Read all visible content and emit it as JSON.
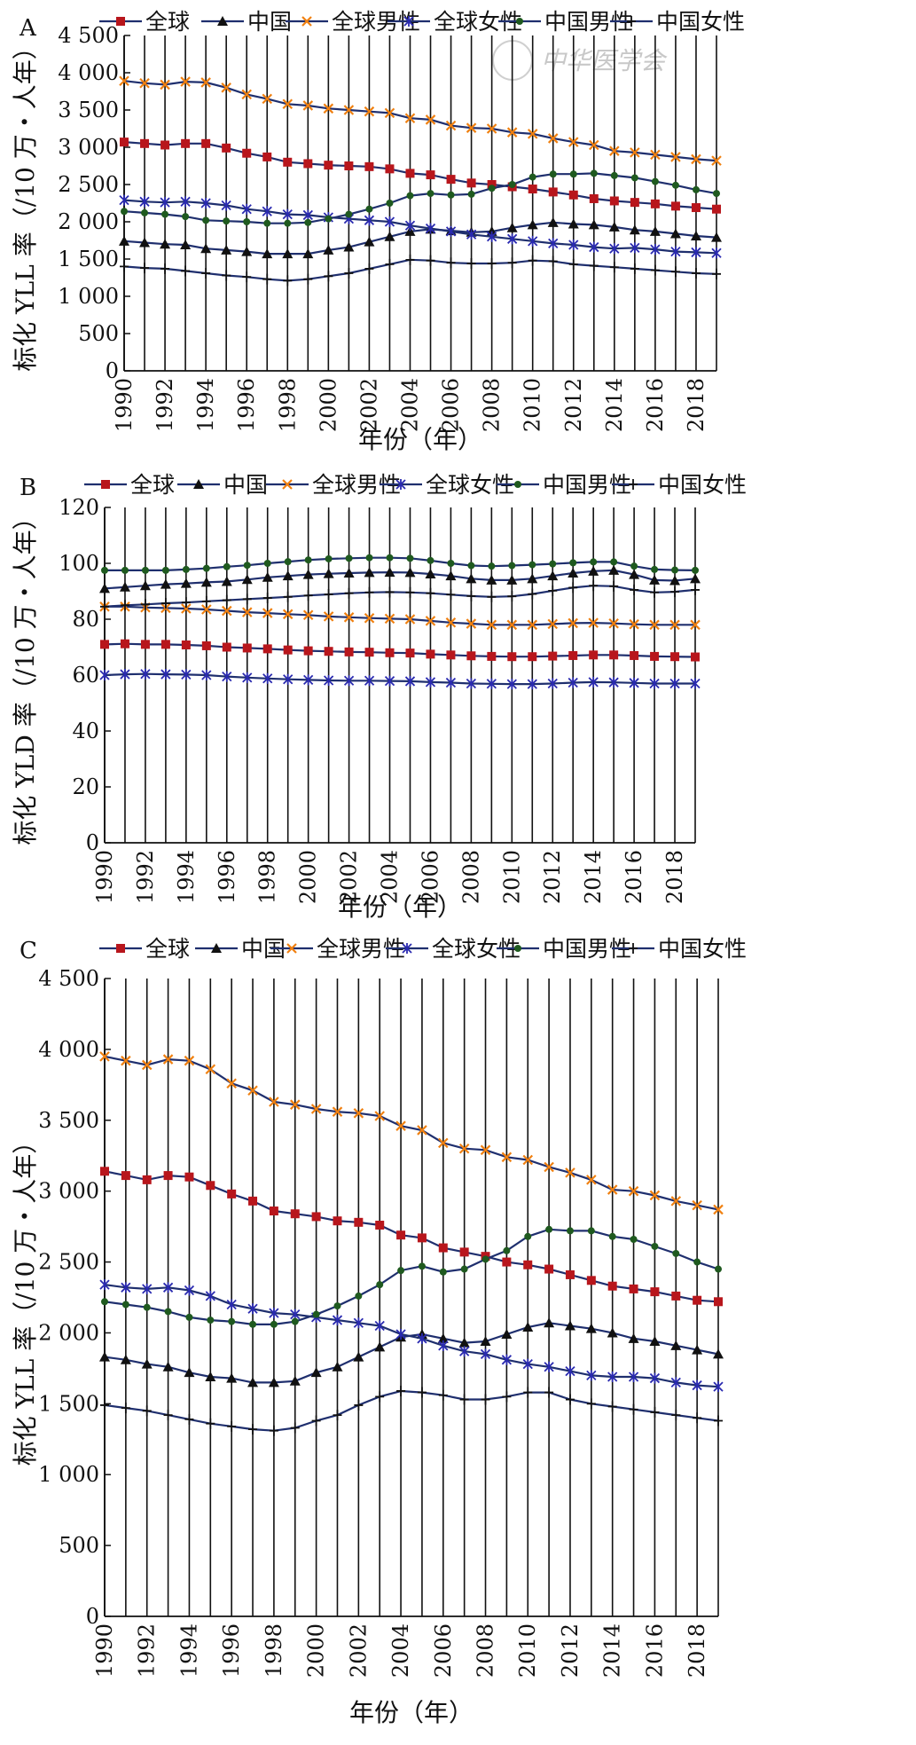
{
  "watermark": "中华医学会",
  "series_styles": [
    {
      "name": "全球",
      "color": "#1f2f6e",
      "marker_color": "#b8161c",
      "marker": "square"
    },
    {
      "name": "中国",
      "color": "#1f2f6e",
      "marker_color": "#111111",
      "marker": "triangle"
    },
    {
      "name": "全球男性",
      "color": "#1f2f6e",
      "marker_color": "#f08010",
      "marker": "x"
    },
    {
      "name": "全球女性",
      "color": "#1f2f6e",
      "marker_color": "#2a2ab0",
      "marker": "star"
    },
    {
      "name": "中国男性",
      "color": "#1f2f6e",
      "marker_color": "#1f5a1f",
      "marker": "circle"
    },
    {
      "name": "中国女性",
      "color": "#1f2f6e",
      "marker_color": "#111111",
      "marker": "plus"
    }
  ],
  "chart_data": [
    {
      "panel": "A",
      "type": "line",
      "ylabel": "标化 YLL 率（/10 万・人年）",
      "xlabel": "年份（年）",
      "ylim": [
        0,
        4500
      ],
      "yticks": [
        "0",
        "500",
        "1 000",
        "1 500",
        "2 000",
        "2 500",
        "3 000",
        "3 500",
        "4 000",
        "4 500"
      ],
      "x": [
        1990,
        1991,
        1992,
        1993,
        1994,
        1995,
        1996,
        1997,
        1998,
        1999,
        2000,
        2001,
        2002,
        2003,
        2004,
        2005,
        2006,
        2007,
        2008,
        2009,
        2010,
        2011,
        2012,
        2013,
        2014,
        2015,
        2016,
        2017,
        2018,
        2019
      ],
      "xticks": [
        "1990",
        "1992",
        "1994",
        "1996",
        "1998",
        "2000",
        "2002",
        "2004",
        "2006",
        "2008",
        "2010",
        "2012",
        "2014",
        "2016",
        "2018"
      ],
      "grid": "vertical",
      "legend": "top",
      "series": [
        {
          "name": "全球",
          "values": [
            3070,
            3050,
            3030,
            3050,
            3050,
            2990,
            2920,
            2870,
            2800,
            2780,
            2760,
            2750,
            2740,
            2710,
            2650,
            2630,
            2570,
            2520,
            2500,
            2470,
            2440,
            2400,
            2360,
            2310,
            2280,
            2260,
            2240,
            2210,
            2190,
            2170
          ]
        },
        {
          "name": "中国",
          "values": [
            1740,
            1720,
            1700,
            1690,
            1640,
            1620,
            1600,
            1570,
            1570,
            1570,
            1620,
            1660,
            1730,
            1800,
            1870,
            1900,
            1880,
            1860,
            1870,
            1920,
            1960,
            1990,
            1970,
            1960,
            1930,
            1890,
            1870,
            1840,
            1810,
            1790
          ]
        },
        {
          "name": "全球男性",
          "values": [
            3890,
            3860,
            3840,
            3880,
            3870,
            3800,
            3710,
            3650,
            3580,
            3560,
            3520,
            3500,
            3480,
            3460,
            3390,
            3370,
            3290,
            3260,
            3250,
            3200,
            3180,
            3120,
            3070,
            3030,
            2950,
            2930,
            2900,
            2870,
            2840,
            2820
          ]
        },
        {
          "name": "全球女性",
          "values": [
            2290,
            2270,
            2260,
            2270,
            2250,
            2220,
            2170,
            2140,
            2100,
            2090,
            2060,
            2040,
            2020,
            2000,
            1950,
            1910,
            1870,
            1830,
            1800,
            1770,
            1740,
            1710,
            1690,
            1660,
            1640,
            1650,
            1630,
            1600,
            1590,
            1580
          ]
        },
        {
          "name": "中国男性",
          "values": [
            2140,
            2120,
            2100,
            2070,
            2020,
            2010,
            2000,
            1980,
            1980,
            1990,
            2040,
            2100,
            2170,
            2250,
            2350,
            2380,
            2360,
            2370,
            2450,
            2500,
            2600,
            2640,
            2640,
            2650,
            2620,
            2590,
            2540,
            2490,
            2430,
            2380
          ]
        },
        {
          "name": "中国女性",
          "values": [
            1400,
            1380,
            1370,
            1340,
            1310,
            1280,
            1260,
            1230,
            1210,
            1230,
            1270,
            1310,
            1370,
            1430,
            1490,
            1480,
            1450,
            1440,
            1440,
            1450,
            1480,
            1470,
            1430,
            1410,
            1390,
            1370,
            1350,
            1330,
            1310,
            1300
          ]
        }
      ]
    },
    {
      "panel": "B",
      "type": "line",
      "ylabel": "标化 YLD 率（/10 万・人年）",
      "xlabel": "年份（年）",
      "ylim": [
        0,
        120
      ],
      "yticks": [
        "0",
        "20",
        "40",
        "60",
        "80",
        "100",
        "120"
      ],
      "x": [
        1990,
        1991,
        1992,
        1993,
        1994,
        1995,
        1996,
        1997,
        1998,
        1999,
        2000,
        2001,
        2002,
        2003,
        2004,
        2005,
        2006,
        2007,
        2008,
        2009,
        2010,
        2011,
        2012,
        2013,
        2014,
        2015,
        2016,
        2017,
        2018,
        2019
      ],
      "xticks": [
        "1990",
        "1992",
        "1994",
        "1996",
        "1998",
        "2000",
        "2002",
        "2004",
        "2006",
        "2008",
        "2010",
        "2012",
        "2014",
        "2016",
        "2018"
      ],
      "grid": "vertical",
      "legend": "top",
      "series": [
        {
          "name": "全球",
          "values": [
            71,
            71.2,
            71,
            71,
            70.8,
            70.5,
            70,
            69.7,
            69.4,
            69,
            68.7,
            68.5,
            68.3,
            68.2,
            68,
            67.9,
            67.5,
            67.2,
            66.9,
            66.7,
            66.6,
            66.6,
            66.8,
            67,
            67.2,
            67.2,
            67,
            66.7,
            66.6,
            66.5
          ]
        },
        {
          "name": "中国",
          "values": [
            91,
            91.5,
            92,
            92.5,
            92.8,
            93.2,
            93.5,
            94.2,
            95,
            95.5,
            96,
            96.3,
            96.5,
            96.7,
            96.8,
            96.7,
            96.2,
            95.5,
            94.5,
            94,
            94,
            94.5,
            95.5,
            96.5,
            97.2,
            97.5,
            96,
            94,
            93.8,
            94.5
          ]
        },
        {
          "name": "全球男性",
          "values": [
            84.5,
            84.5,
            84.2,
            84,
            83.8,
            83.5,
            83,
            82.5,
            82.2,
            81.8,
            81.5,
            81,
            80.7,
            80.4,
            80.2,
            80,
            79.4,
            78.8,
            78.4,
            78,
            78,
            78,
            78.3,
            78.6,
            78.7,
            78.5,
            78.2,
            78,
            78,
            78
          ]
        },
        {
          "name": "全球女性",
          "values": [
            60,
            60.3,
            60.4,
            60.3,
            60.2,
            60,
            59.5,
            59.1,
            58.8,
            58.5,
            58.3,
            58.1,
            58,
            58,
            57.9,
            57.8,
            57.5,
            57.3,
            57,
            56.9,
            56.8,
            56.8,
            57,
            57.3,
            57.5,
            57.4,
            57.2,
            57,
            57,
            57
          ]
        },
        {
          "name": "中国男性",
          "values": [
            97.5,
            97.5,
            97.5,
            97.5,
            97.8,
            98.2,
            98.8,
            99.3,
            100,
            100.6,
            101.2,
            101.6,
            101.8,
            102,
            102,
            101.8,
            101,
            100,
            99.2,
            99,
            99.2,
            99.5,
            99.8,
            100.2,
            100.5,
            100.5,
            99,
            97.8,
            97.6,
            97.5
          ]
        },
        {
          "name": "中国女性",
          "values": [
            84.5,
            85,
            85.3,
            85.7,
            86,
            86.4,
            86.8,
            87.2,
            87.6,
            88,
            88.5,
            88.9,
            89.3,
            89.6,
            89.7,
            89.6,
            89.3,
            88.8,
            88.3,
            88,
            88.2,
            89,
            90.2,
            91.3,
            92,
            91.8,
            90.5,
            89.6,
            89.8,
            90.5
          ]
        }
      ]
    },
    {
      "panel": "C",
      "type": "line",
      "ylabel": "标化 YLL 率（/10 万・人年）",
      "xlabel": "年份（年）",
      "ylim": [
        0,
        4500
      ],
      "yticks": [
        "0",
        "500",
        "1 000",
        "1 500",
        "2 000",
        "2 500",
        "3 000",
        "3 500",
        "4 000",
        "4 500"
      ],
      "x": [
        1990,
        1991,
        1992,
        1993,
        1994,
        1995,
        1996,
        1997,
        1998,
        1999,
        2000,
        2001,
        2002,
        2003,
        2004,
        2005,
        2006,
        2007,
        2008,
        2009,
        2010,
        2011,
        2012,
        2013,
        2014,
        2015,
        2016,
        2017,
        2018,
        2019
      ],
      "xticks": [
        "1990",
        "1992",
        "1994",
        "1996",
        "1998",
        "2000",
        "2002",
        "2004",
        "2006",
        "2008",
        "2010",
        "2012",
        "2014",
        "2016",
        "2018"
      ],
      "grid": "vertical",
      "legend": "top",
      "series": [
        {
          "name": "全球",
          "values": [
            3140,
            3110,
            3080,
            3110,
            3100,
            3040,
            2980,
            2930,
            2860,
            2840,
            2820,
            2790,
            2780,
            2760,
            2690,
            2670,
            2600,
            2570,
            2540,
            2500,
            2480,
            2450,
            2410,
            2370,
            2330,
            2310,
            2290,
            2260,
            2230,
            2220
          ]
        },
        {
          "name": "中国",
          "values": [
            1830,
            1810,
            1780,
            1760,
            1720,
            1690,
            1680,
            1650,
            1650,
            1660,
            1720,
            1760,
            1830,
            1900,
            1970,
            1990,
            1960,
            1930,
            1940,
            1990,
            2040,
            2070,
            2050,
            2030,
            2000,
            1960,
            1940,
            1910,
            1880,
            1850
          ]
        },
        {
          "name": "全球男性",
          "values": [
            3950,
            3920,
            3890,
            3930,
            3920,
            3860,
            3760,
            3710,
            3630,
            3610,
            3580,
            3560,
            3550,
            3530,
            3460,
            3430,
            3340,
            3300,
            3290,
            3240,
            3220,
            3170,
            3130,
            3080,
            3010,
            3000,
            2970,
            2930,
            2900,
            2870
          ]
        },
        {
          "name": "全球女性",
          "values": [
            2340,
            2320,
            2310,
            2320,
            2300,
            2260,
            2200,
            2170,
            2140,
            2130,
            2110,
            2090,
            2070,
            2050,
            1990,
            1960,
            1910,
            1870,
            1850,
            1810,
            1780,
            1760,
            1730,
            1700,
            1690,
            1690,
            1680,
            1650,
            1630,
            1620
          ]
        },
        {
          "name": "中国男性",
          "values": [
            2220,
            2200,
            2180,
            2150,
            2110,
            2090,
            2080,
            2060,
            2060,
            2080,
            2130,
            2190,
            2260,
            2340,
            2440,
            2470,
            2430,
            2450,
            2520,
            2580,
            2680,
            2730,
            2720,
            2720,
            2680,
            2660,
            2610,
            2560,
            2500,
            2450
          ]
        },
        {
          "name": "中国女性",
          "values": [
            1490,
            1470,
            1450,
            1420,
            1390,
            1360,
            1340,
            1320,
            1310,
            1330,
            1380,
            1420,
            1490,
            1550,
            1590,
            1580,
            1560,
            1530,
            1530,
            1550,
            1580,
            1580,
            1530,
            1500,
            1480,
            1460,
            1440,
            1420,
            1400,
            1380
          ]
        }
      ]
    }
  ],
  "panels_layout_words": [
    "top",
    "middle",
    "bottom"
  ]
}
